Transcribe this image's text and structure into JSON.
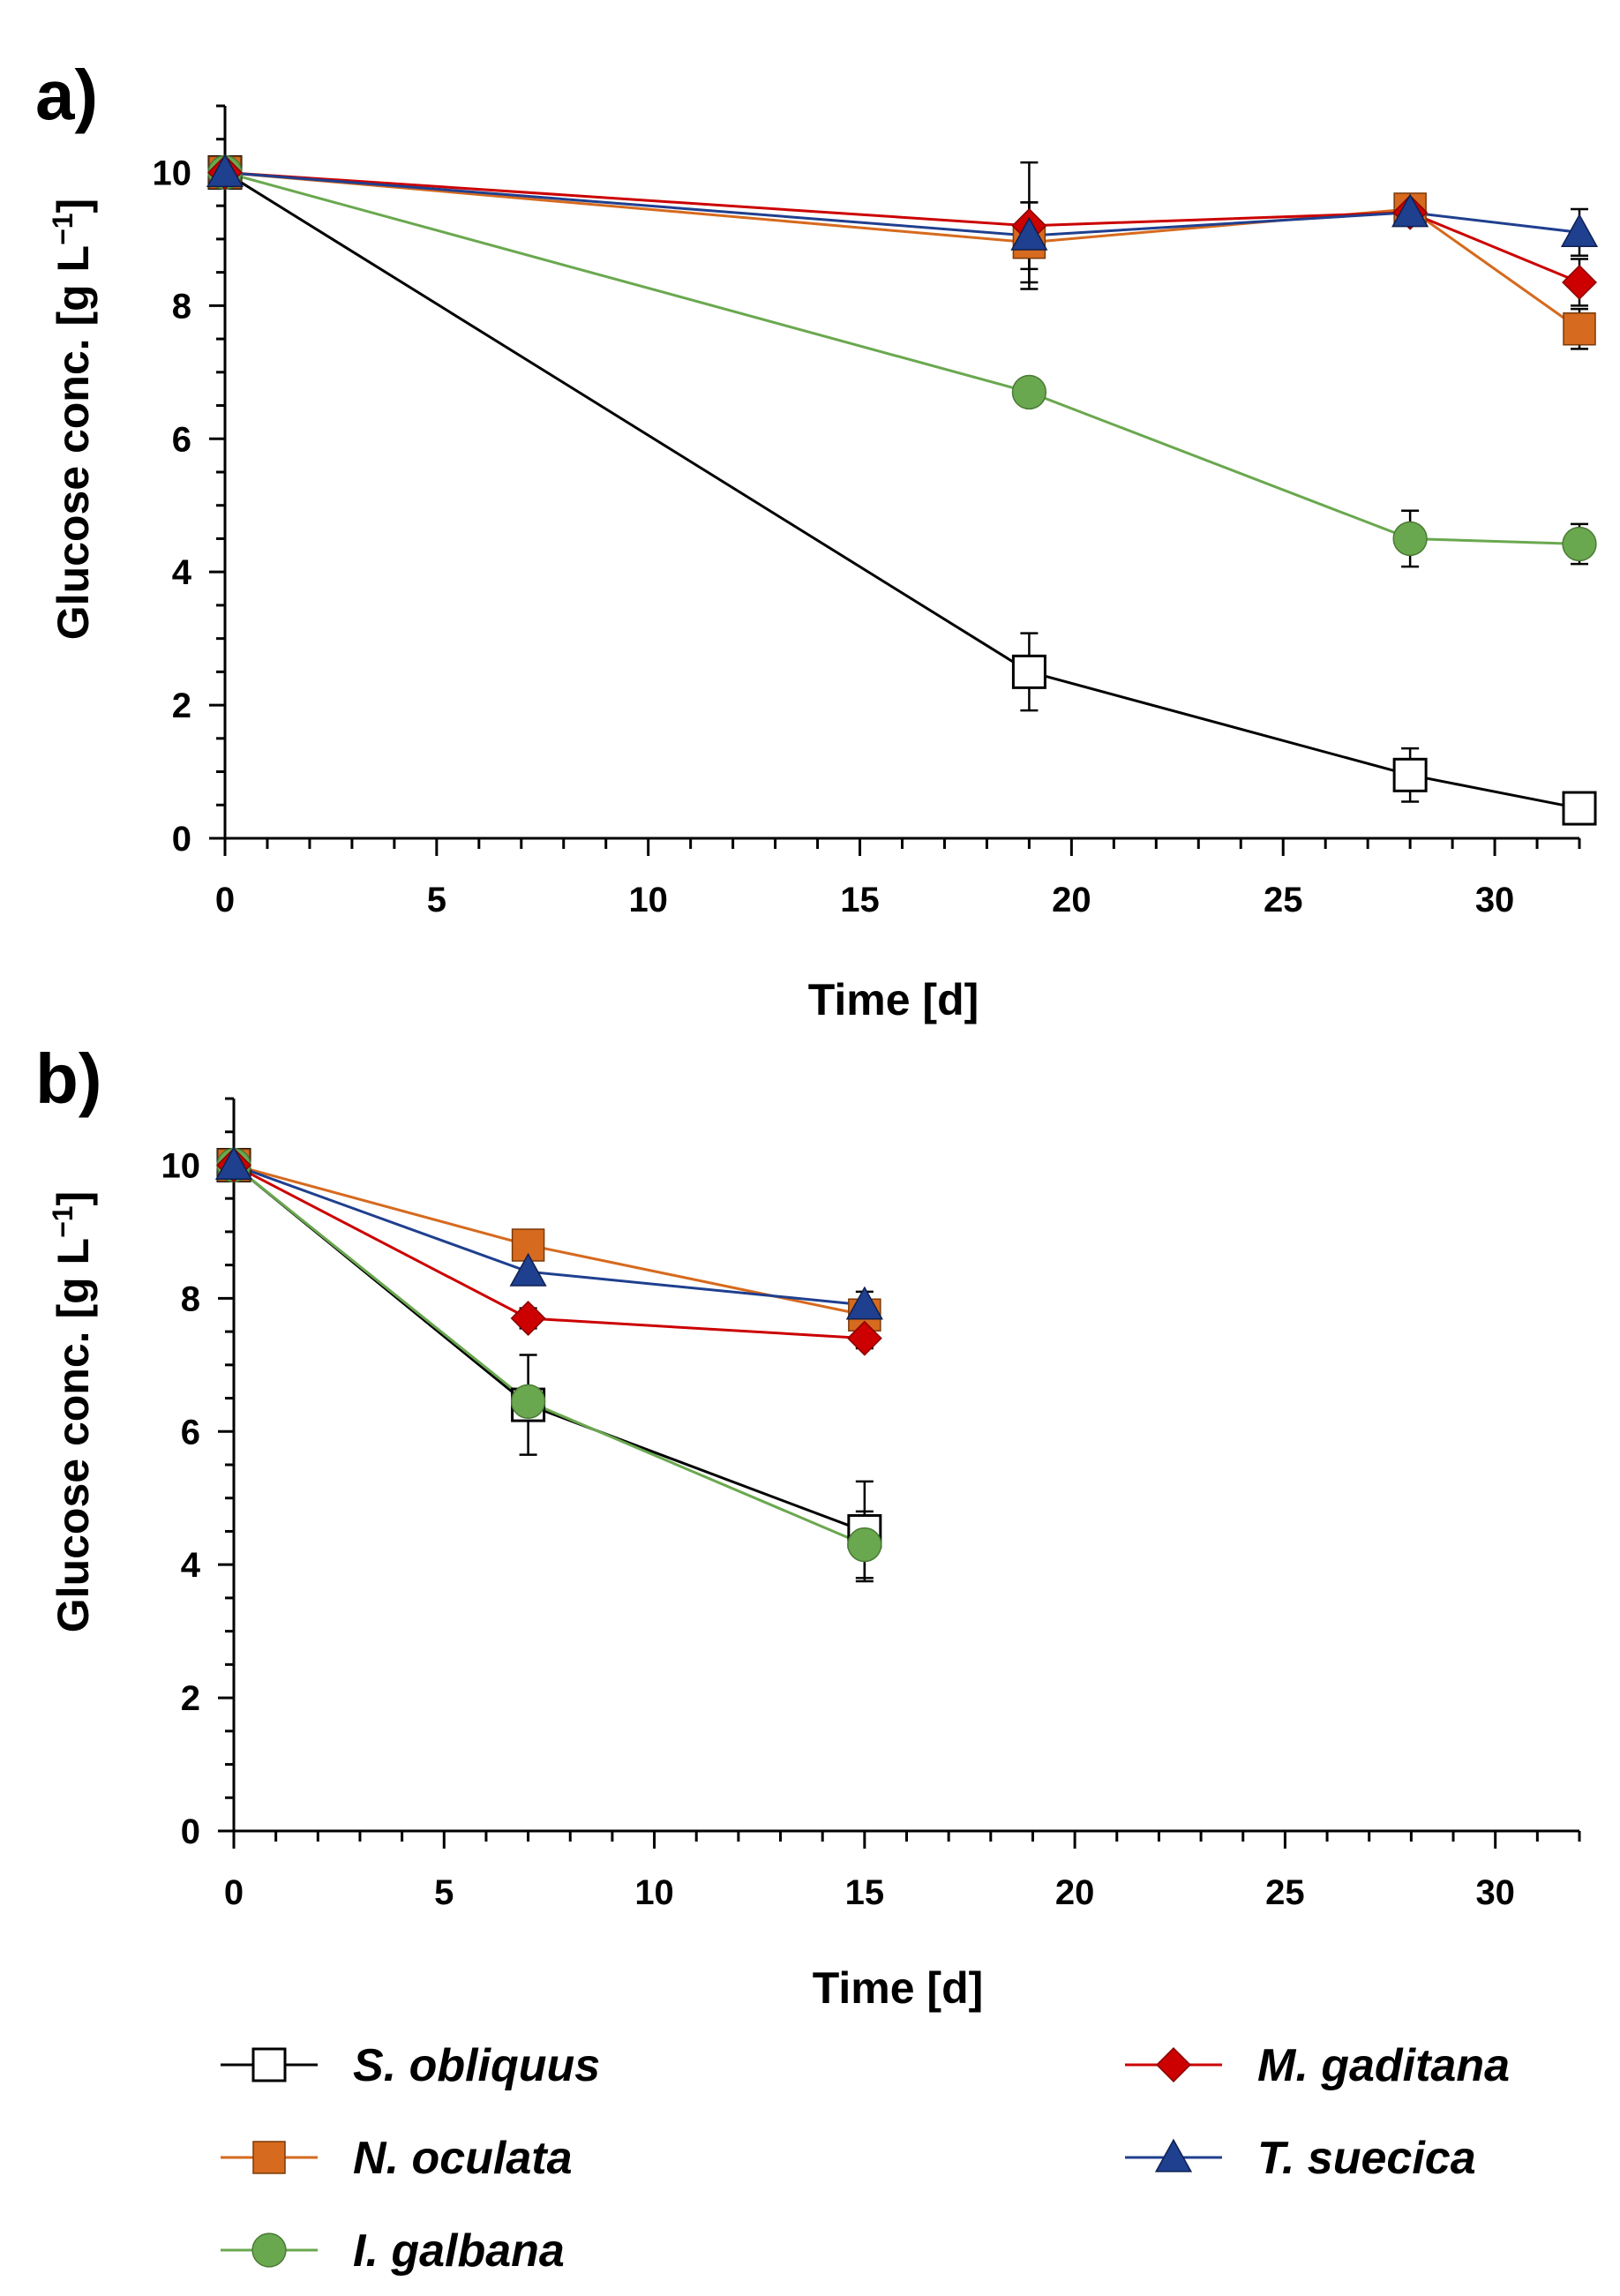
{
  "chart_data": [
    {
      "panel": "a)",
      "type": "line",
      "xlabel": "Time [d]",
      "ylabel": "Glucose conc. [g L",
      "ylabel_sup": "−1",
      "ylabel_close": "]",
      "xlim": [
        0,
        32
      ],
      "ylim": [
        0,
        11
      ],
      "xticks": [
        0,
        5,
        10,
        15,
        20,
        25,
        30
      ],
      "yticks": [
        0,
        2,
        4,
        6,
        8,
        10
      ],
      "series": [
        {
          "name": "S. obliquus",
          "color": "#000000",
          "fill": "#ffffff",
          "marker": "square",
          "x": [
            0,
            19,
            28,
            32
          ],
          "y": [
            10.0,
            2.5,
            0.95,
            0.45
          ],
          "err": [
            0,
            0.58,
            0.4,
            0
          ]
        },
        {
          "name": "N. oculata",
          "color": "#d66a1e",
          "fill": "#d66a1e",
          "marker": "square",
          "x": [
            0,
            19,
            28,
            32
          ],
          "y": [
            10.0,
            8.95,
            9.45,
            7.65
          ],
          "err": [
            0,
            0.6,
            0,
            0.3
          ]
        },
        {
          "name": "I. galbana",
          "color": "#6aa84f",
          "fill": "#6aa84f",
          "marker": "circle",
          "x": [
            0,
            19,
            28,
            32
          ],
          "y": [
            10.0,
            6.7,
            4.5,
            4.42
          ],
          "err": [
            0,
            0,
            0.42,
            0.3
          ]
        },
        {
          "name": "M. gaditana",
          "color": "#cc0000",
          "fill": "#cc0000",
          "marker": "diamond",
          "x": [
            0,
            19,
            28,
            32
          ],
          "y": [
            10.0,
            9.2,
            9.4,
            8.35
          ],
          "err": [
            0,
            0.95,
            0,
            0.35
          ]
        },
        {
          "name": "T. suecica",
          "color": "#1f3f8f",
          "fill": "#1f3f8f",
          "marker": "triangle",
          "x": [
            0,
            19,
            28,
            32
          ],
          "y": [
            10.0,
            9.05,
            9.4,
            9.1
          ],
          "err": [
            0,
            0.5,
            0,
            0.35
          ]
        }
      ]
    },
    {
      "panel": "b)",
      "type": "line",
      "xlabel": "Time [d]",
      "ylabel": "Glucose conc. [g L",
      "ylabel_sup": "−1",
      "ylabel_close": "]",
      "xlim": [
        0,
        32
      ],
      "ylim": [
        0,
        11
      ],
      "xticks": [
        0,
        5,
        10,
        15,
        20,
        25,
        30
      ],
      "yticks": [
        0,
        2,
        4,
        6,
        8,
        10
      ],
      "series": [
        {
          "name": "S. obliquus",
          "color": "#000000",
          "fill": "#ffffff",
          "marker": "square",
          "x": [
            0,
            7,
            15
          ],
          "y": [
            10.0,
            6.4,
            4.5
          ],
          "err": [
            0,
            0.75,
            0.75
          ]
        },
        {
          "name": "N. oculata",
          "color": "#d66a1e",
          "fill": "#d66a1e",
          "marker": "square",
          "x": [
            0,
            7,
            15
          ],
          "y": [
            10.0,
            8.8,
            7.75
          ],
          "err": [
            0,
            0,
            0
          ]
        },
        {
          "name": "I. galbana",
          "color": "#6aa84f",
          "fill": "#6aa84f",
          "marker": "circle",
          "x": [
            0,
            7,
            15
          ],
          "y": [
            10.0,
            6.45,
            4.3
          ],
          "err": [
            0,
            0,
            0.5
          ]
        },
        {
          "name": "M. gaditana",
          "color": "#cc0000",
          "fill": "#cc0000",
          "marker": "diamond",
          "x": [
            0,
            7,
            15
          ],
          "y": [
            10.0,
            7.7,
            7.4
          ],
          "err": [
            0,
            0.15,
            0.15
          ]
        },
        {
          "name": "T. suecica",
          "color": "#1f3f8f",
          "fill": "#1f3f8f",
          "marker": "triangle",
          "x": [
            0,
            7,
            15
          ],
          "y": [
            10.0,
            8.4,
            7.9
          ],
          "err": [
            0,
            0,
            0.2
          ]
        }
      ]
    }
  ],
  "legend": [
    {
      "name": "S. obliquus",
      "color": "#000000",
      "fill": "#ffffff",
      "marker": "square"
    },
    {
      "name": "M. gaditana",
      "color": "#cc0000",
      "fill": "#cc0000",
      "marker": "diamond"
    },
    {
      "name": "N. oculata",
      "color": "#d66a1e",
      "fill": "#d66a1e",
      "marker": "square"
    },
    {
      "name": "T. suecica",
      "color": "#1f3f8f",
      "fill": "#1f3f8f",
      "marker": "triangle"
    },
    {
      "name": "I. galbana",
      "color": "#6aa84f",
      "fill": "#6aa84f",
      "marker": "circle"
    }
  ]
}
